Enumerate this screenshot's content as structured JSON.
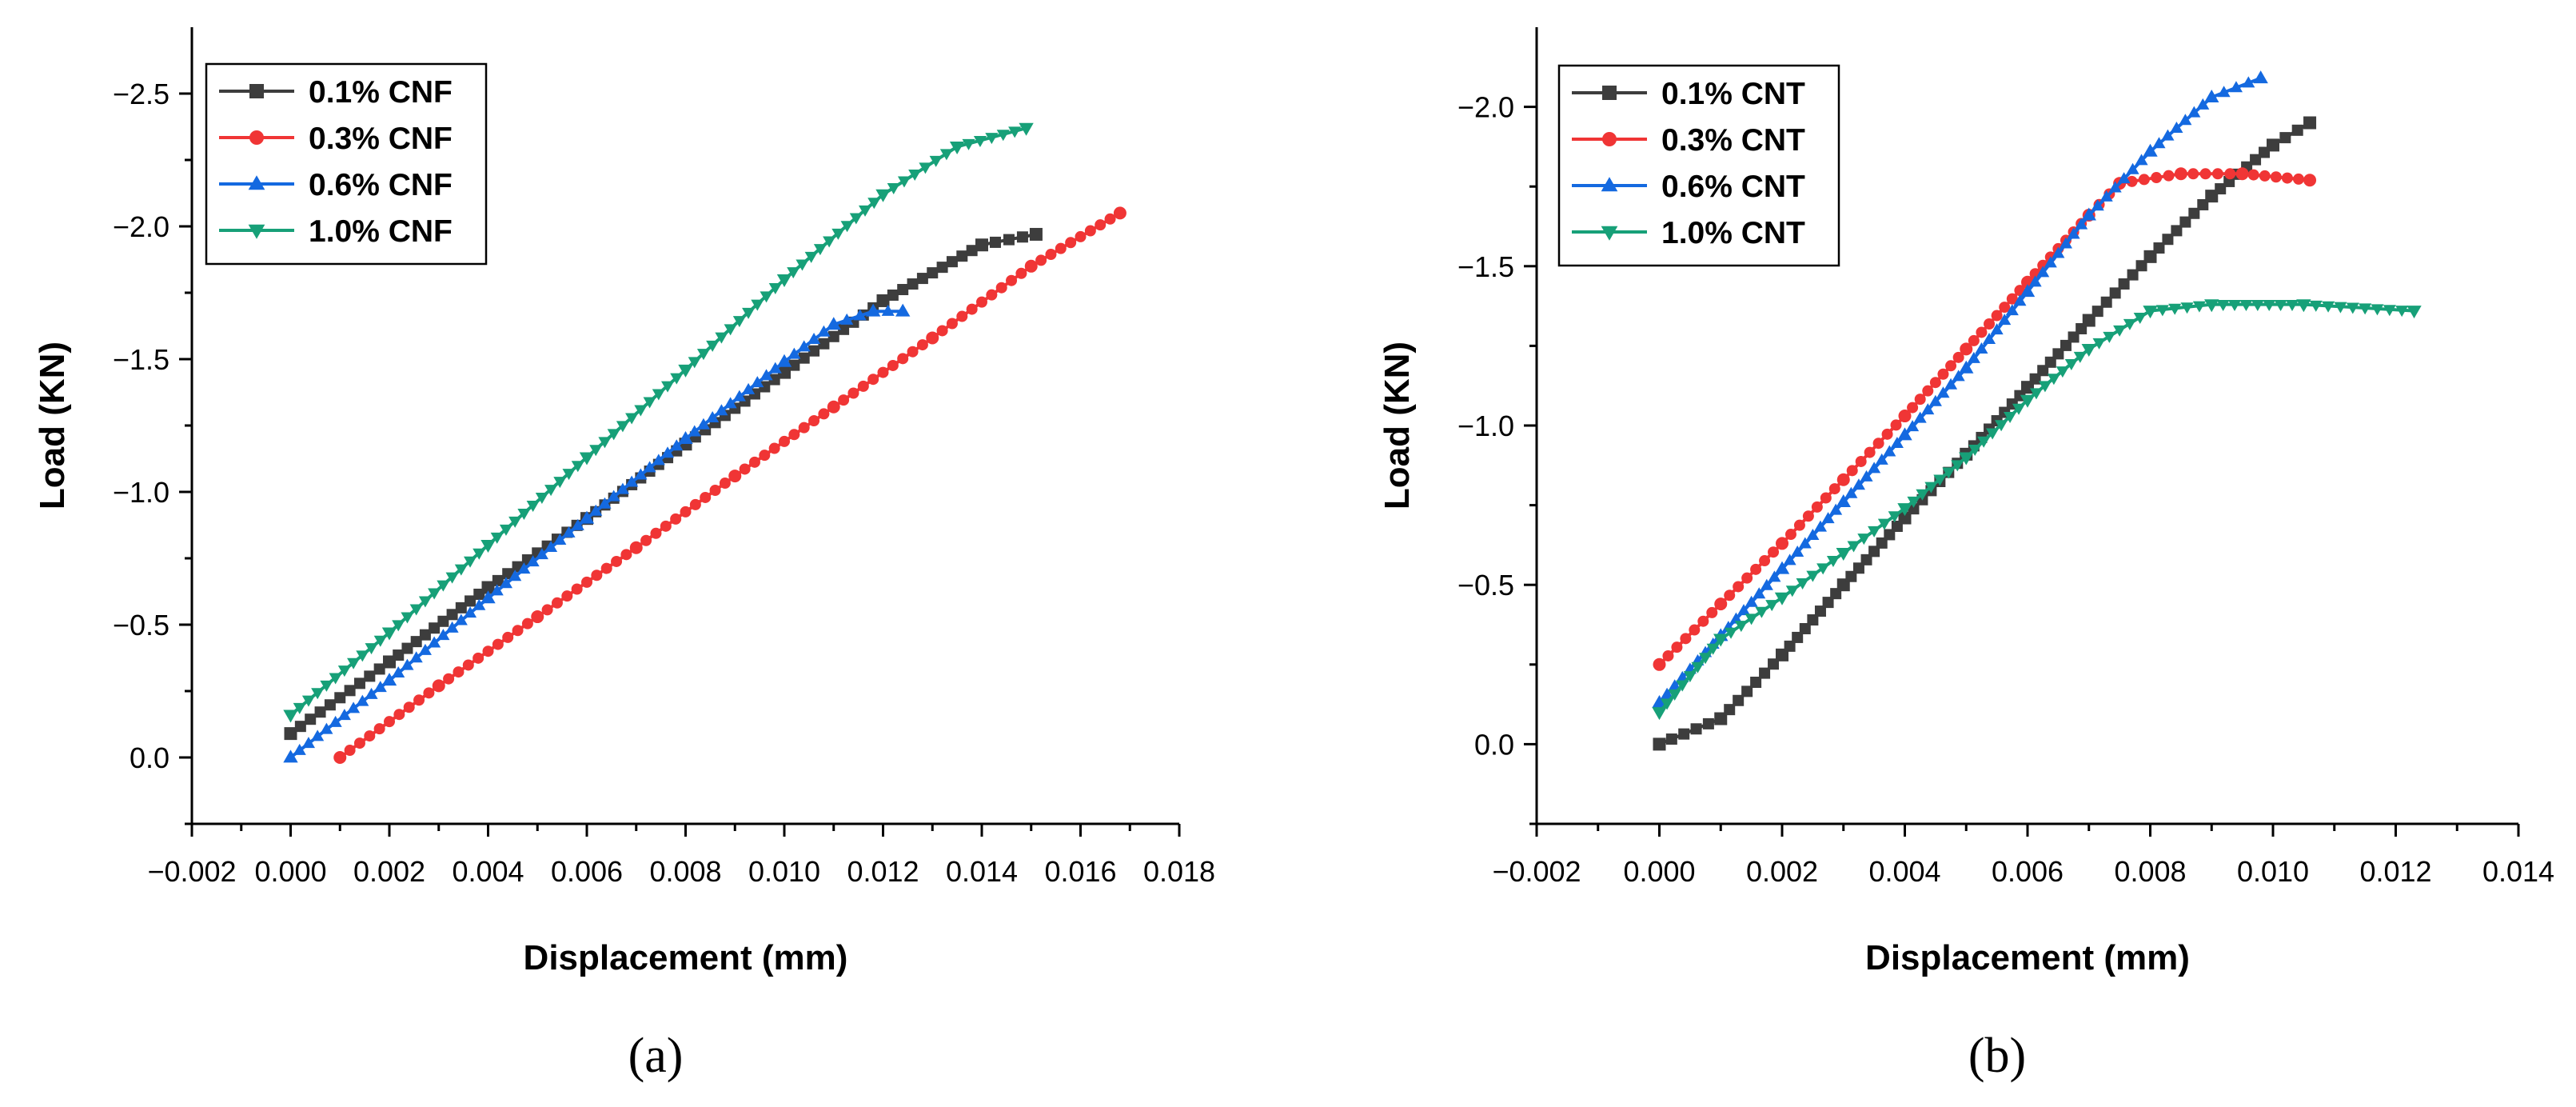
{
  "chart_data": [
    {
      "type": "line",
      "panel_label": "(a)",
      "xlabel": "Displacement (mm)",
      "ylabel": "Load (KN)",
      "xlim": [
        -0.002,
        0.018
      ],
      "ylim": [
        0.25,
        -2.75
      ],
      "y_axis_inverted": true,
      "xticks": [
        {
          "v": -0.002,
          "label": "−0.002"
        },
        {
          "v": 0.0,
          "label": "0.000"
        },
        {
          "v": 0.002,
          "label": "0.002"
        },
        {
          "v": 0.004,
          "label": "0.004"
        },
        {
          "v": 0.006,
          "label": "0.006"
        },
        {
          "v": 0.008,
          "label": "0.008"
        },
        {
          "v": 0.01,
          "label": "0.010"
        },
        {
          "v": 0.012,
          "label": "0.012"
        },
        {
          "v": 0.014,
          "label": "0.014"
        },
        {
          "v": 0.016,
          "label": "0.016"
        },
        {
          "v": 0.018,
          "label": "0.018"
        }
      ],
      "yticks": [
        {
          "v": 0.0,
          "label": "0.0"
        },
        {
          "v": -0.5,
          "label": "−0.5"
        },
        {
          "v": -1.0,
          "label": "−1.0"
        },
        {
          "v": -1.5,
          "label": "−1.5"
        },
        {
          "v": -2.0,
          "label": "−2.0"
        },
        {
          "v": -2.5,
          "label": "−2.5"
        }
      ],
      "legend_position": "top-left",
      "grid": false,
      "series": [
        {
          "name": "0.1% CNF",
          "color": "#3d3d3d",
          "marker": "square",
          "points": [
            [
              0.0,
              -0.09
            ],
            [
              0.002,
              -0.36
            ],
            [
              0.004,
              -0.64
            ],
            [
              0.006,
              -0.9
            ],
            [
              0.008,
              -1.18
            ],
            [
              0.01,
              -1.45
            ],
            [
              0.012,
              -1.72
            ],
            [
              0.014,
              -1.93
            ],
            [
              0.0151,
              -1.97
            ]
          ]
        },
        {
          "name": "0.3% CNF",
          "color": "#f03535",
          "marker": "circle",
          "points": [
            [
              0.001,
              0.0
            ],
            [
              0.003,
              -0.27
            ],
            [
              0.005,
              -0.53
            ],
            [
              0.007,
              -0.79
            ],
            [
              0.009,
              -1.06
            ],
            [
              0.011,
              -1.32
            ],
            [
              0.013,
              -1.58
            ],
            [
              0.015,
              -1.85
            ],
            [
              0.0168,
              -2.05
            ]
          ]
        },
        {
          "name": "0.6% CNF",
          "color": "#1469e0",
          "marker": "triangle-up",
          "points": [
            [
              0.0,
              0.0
            ],
            [
              0.002,
              -0.29
            ],
            [
              0.004,
              -0.6
            ],
            [
              0.006,
              -0.9
            ],
            [
              0.008,
              -1.2
            ],
            [
              0.01,
              -1.49
            ],
            [
              0.011,
              -1.63
            ],
            [
              0.0118,
              -1.68
            ],
            [
              0.0124,
              -1.68
            ]
          ]
        },
        {
          "name": "1.0% CNF",
          "color": "#17a078",
          "marker": "triangle-down",
          "points": [
            [
              0.0,
              -0.16
            ],
            [
              0.002,
              -0.47
            ],
            [
              0.004,
              -0.8
            ],
            [
              0.006,
              -1.13
            ],
            [
              0.008,
              -1.46
            ],
            [
              0.01,
              -1.8
            ],
            [
              0.012,
              -2.12
            ],
            [
              0.0135,
              -2.3
            ],
            [
              0.0149,
              -2.37
            ]
          ]
        }
      ]
    },
    {
      "type": "line",
      "panel_label": "(b)",
      "xlabel": "Displacement (mm)",
      "ylabel": "Load (KN)",
      "xlim": [
        -0.002,
        0.014
      ],
      "ylim": [
        0.25,
        -2.25
      ],
      "y_axis_inverted": true,
      "xticks": [
        {
          "v": -0.002,
          "label": "−0.002"
        },
        {
          "v": 0.0,
          "label": "0.000"
        },
        {
          "v": 0.002,
          "label": "0.002"
        },
        {
          "v": 0.004,
          "label": "0.004"
        },
        {
          "v": 0.006,
          "label": "0.006"
        },
        {
          "v": 0.008,
          "label": "0.008"
        },
        {
          "v": 0.01,
          "label": "0.010"
        },
        {
          "v": 0.012,
          "label": "0.012"
        },
        {
          "v": 0.014,
          "label": "0.014"
        }
      ],
      "yticks": [
        {
          "v": 0.0,
          "label": "0.0"
        },
        {
          "v": -0.5,
          "label": "−0.5"
        },
        {
          "v": -1.0,
          "label": "−1.0"
        },
        {
          "v": -1.5,
          "label": "−1.5"
        },
        {
          "v": -2.0,
          "label": "−2.0"
        }
      ],
      "legend_position": "top-left",
      "grid": false,
      "series": [
        {
          "name": "0.1% CNT",
          "color": "#3d3d3d",
          "marker": "square",
          "points": [
            [
              0.0,
              0.0
            ],
            [
              0.001,
              -0.08
            ],
            [
              0.002,
              -0.28
            ],
            [
              0.003,
              -0.5
            ],
            [
              0.004,
              -0.71
            ],
            [
              0.005,
              -0.91
            ],
            [
              0.006,
              -1.12
            ],
            [
              0.007,
              -1.33
            ],
            [
              0.008,
              -1.53
            ],
            [
              0.009,
              -1.72
            ],
            [
              0.01,
              -1.88
            ],
            [
              0.0106,
              -1.95
            ]
          ]
        },
        {
          "name": "0.3% CNT",
          "color": "#f03535",
          "marker": "circle",
          "points": [
            [
              0.0,
              -0.25
            ],
            [
              0.001,
              -0.44
            ],
            [
              0.002,
              -0.63
            ],
            [
              0.003,
              -0.83
            ],
            [
              0.004,
              -1.03
            ],
            [
              0.005,
              -1.24
            ],
            [
              0.006,
              -1.45
            ],
            [
              0.007,
              -1.66
            ],
            [
              0.0075,
              -1.76
            ],
            [
              0.0085,
              -1.79
            ],
            [
              0.0095,
              -1.79
            ],
            [
              0.0106,
              -1.77
            ]
          ]
        },
        {
          "name": "0.6% CNT",
          "color": "#1469e0",
          "marker": "triangle-up",
          "points": [
            [
              0.0,
              -0.13
            ],
            [
              0.001,
              -0.34
            ],
            [
              0.002,
              -0.55
            ],
            [
              0.003,
              -0.76
            ],
            [
              0.004,
              -0.97
            ],
            [
              0.005,
              -1.18
            ],
            [
              0.006,
              -1.42
            ],
            [
              0.007,
              -1.66
            ],
            [
              0.008,
              -1.86
            ],
            [
              0.009,
              -2.03
            ],
            [
              0.0098,
              -2.09
            ]
          ]
        },
        {
          "name": "1.0% CNT",
          "color": "#17a078",
          "marker": "triangle-down",
          "points": [
            [
              0.0,
              -0.1
            ],
            [
              0.001,
              -0.33
            ],
            [
              0.002,
              -0.46
            ],
            [
              0.003,
              -0.6
            ],
            [
              0.004,
              -0.74
            ],
            [
              0.005,
              -0.9
            ],
            [
              0.006,
              -1.08
            ],
            [
              0.007,
              -1.24
            ],
            [
              0.008,
              -1.36
            ],
            [
              0.009,
              -1.38
            ],
            [
              0.0105,
              -1.38
            ],
            [
              0.0123,
              -1.36
            ]
          ]
        }
      ]
    }
  ]
}
